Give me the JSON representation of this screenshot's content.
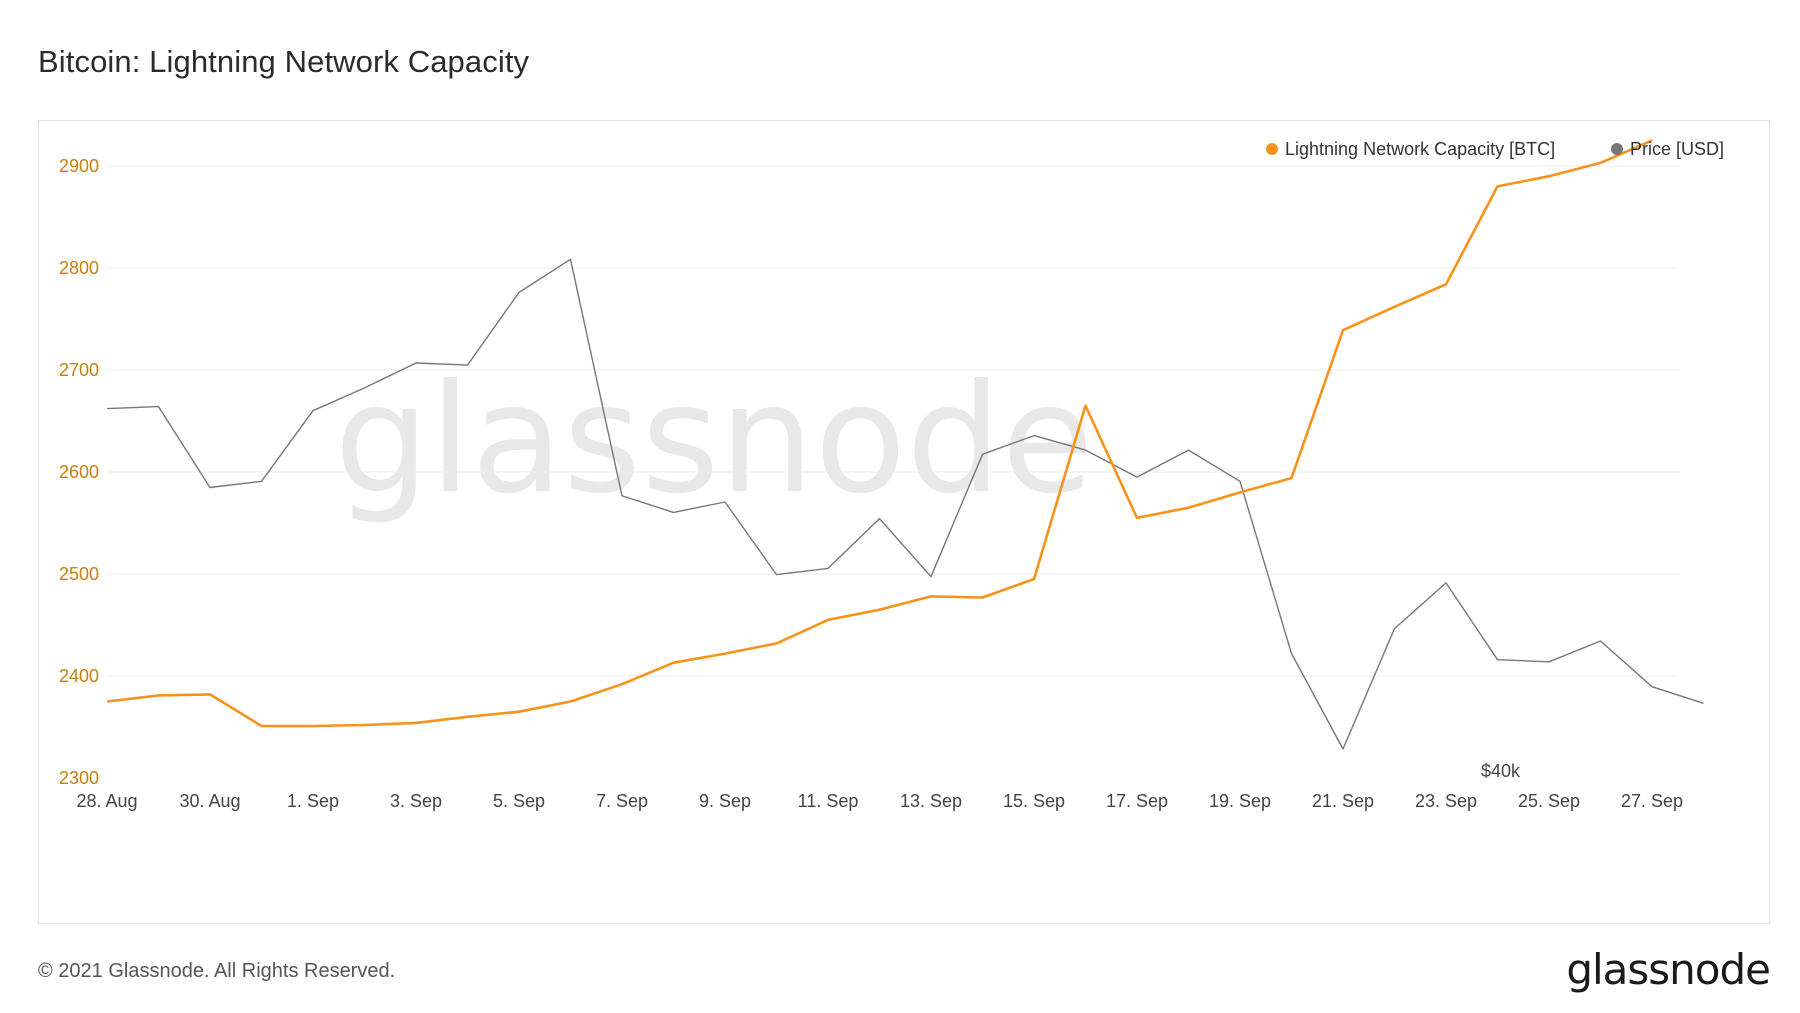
{
  "title": "Bitcoin: Lightning Network Capacity",
  "footer": {
    "copyright": "© 2021 Glassnode. All Rights Reserved.",
    "logo": "glassnode"
  },
  "watermark": "glassnode",
  "colors": {
    "capacity": "#f7931a",
    "price": "#777777",
    "grid": "#ececec",
    "axis_text_left": "#c97f0a"
  },
  "chart_data": {
    "type": "line",
    "title": "Bitcoin: Lightning Network Capacity",
    "legend": [
      "Lightning Network Capacity [BTC]",
      "Price [USD]"
    ],
    "legend_position": "top-right",
    "x": [
      "28. Aug",
      "29. Aug",
      "30. Aug",
      "31. Aug",
      "1. Sep",
      "2. Sep",
      "3. Sep",
      "4. Sep",
      "5. Sep",
      "6. Sep",
      "7. Sep",
      "8. Sep",
      "9. Sep",
      "10. Sep",
      "11. Sep",
      "12. Sep",
      "13. Sep",
      "14. Sep",
      "15. Sep",
      "16. Sep",
      "17. Sep",
      "18. Sep",
      "19. Sep",
      "20. Sep",
      "21. Sep",
      "22. Sep",
      "23. Sep",
      "24. Sep",
      "25. Sep",
      "26. Sep",
      "27. Sep",
      "28. Sep"
    ],
    "x_tick_labels": [
      "28. Aug",
      "30. Aug",
      "1. Sep",
      "3. Sep",
      "5. Sep",
      "7. Sep",
      "9. Sep",
      "11. Sep",
      "13. Sep",
      "15. Sep",
      "17. Sep",
      "19. Sep",
      "21. Sep",
      "23. Sep",
      "25. Sep",
      "27. Sep"
    ],
    "y_ticks": [
      2300,
      2400,
      2500,
      2600,
      2700,
      2800,
      2900
    ],
    "ylim": [
      2300,
      3000
    ],
    "right_axis_label": "$40k",
    "series": [
      {
        "name": "Lightning Network Capacity [BTC]",
        "axis": "left",
        "values": [
          2375,
          2381,
          2382,
          2351,
          2351,
          2352,
          2354,
          2360,
          2365,
          2375,
          2392,
          2413,
          2422,
          2432,
          2455,
          2465,
          2478,
          2477,
          2495,
          2665,
          2555,
          2565,
          2580,
          2594,
          2739,
          2762,
          2784,
          2880,
          2890,
          2903,
          2925,
          null
        ]
      },
      {
        "name": "Price [USD]",
        "axis": "right",
        "values": [
          48900,
          48950,
          47000,
          47150,
          48850,
          49400,
          50000,
          49950,
          51700,
          52500,
          46800,
          46400,
          46650,
          44900,
          45050,
          46250,
          44850,
          47800,
          48250,
          47900,
          47250,
          47900,
          47150,
          43000,
          40700,
          43600,
          44700,
          42850,
          42800,
          43300,
          42200,
          41800
        ]
      }
    ]
  }
}
